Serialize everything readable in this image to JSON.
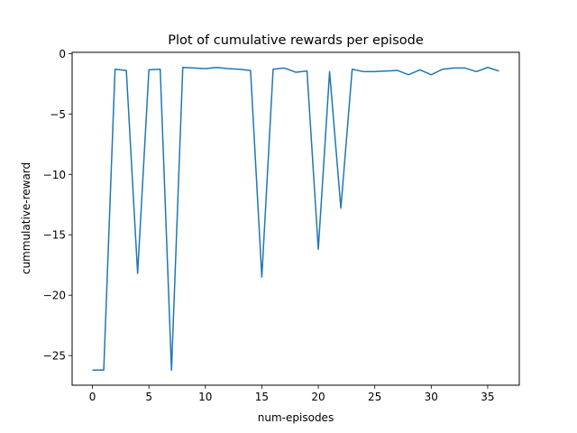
{
  "chart_data": {
    "type": "line",
    "title": "Plot of cumulative rewards per episode",
    "xlabel": "num-episodes",
    "ylabel": "cummulative-reward",
    "xlim": [
      -1.8,
      37.8
    ],
    "ylim": [
      -27.45,
      0.1
    ],
    "xticks": [
      0,
      5,
      10,
      15,
      20,
      25,
      30,
      35
    ],
    "yticks": [
      0,
      -5,
      -10,
      -15,
      -20,
      -25
    ],
    "xtick_labels": [
      "0",
      "5",
      "10",
      "15",
      "20",
      "25",
      "30",
      "35"
    ],
    "ytick_labels": [
      "0",
      "−5",
      "−10",
      "−15",
      "−20",
      "−25"
    ],
    "grid": false,
    "line_color": "#1f77b4",
    "series": [
      {
        "x": [
          0,
          1,
          2,
          3,
          4,
          5,
          6,
          7,
          8,
          9,
          10,
          11,
          12,
          13,
          14,
          15,
          16,
          17,
          18,
          19,
          20,
          21,
          22,
          23,
          24,
          25,
          26,
          27,
          28,
          29,
          30,
          31,
          32,
          33,
          34,
          35,
          36
        ],
        "values": [
          -26.2,
          -26.2,
          -1.3,
          -1.4,
          -18.2,
          -1.35,
          -1.3,
          -26.2,
          -1.15,
          -1.2,
          -1.25,
          -1.15,
          -1.25,
          -1.3,
          -1.4,
          -18.5,
          -1.3,
          -1.2,
          -1.55,
          -1.45,
          -16.2,
          -1.5,
          -12.8,
          -1.3,
          -1.5,
          -1.5,
          -1.45,
          -1.4,
          -1.75,
          -1.35,
          -1.75,
          -1.3,
          -1.2,
          -1.2,
          -1.5,
          -1.15,
          -1.45
        ]
      }
    ]
  }
}
